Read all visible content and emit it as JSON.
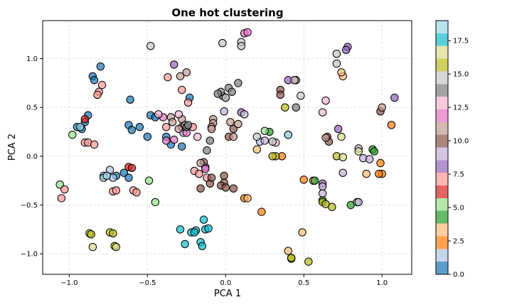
{
  "chart_data": {
    "type": "scatter",
    "title": "One hot clustering",
    "xlabel": "PCA 1",
    "ylabel": "PCA 2",
    "xlim": [
      -1.17,
      1.19
    ],
    "ylim": [
      -1.21,
      1.39
    ],
    "xticks": [
      -1.0,
      -0.5,
      0.0,
      0.5,
      1.0
    ],
    "xtick_labels": [
      "−1.0",
      "−0.5",
      "0.0",
      "0.5",
      "1.0"
    ],
    "yticks": [
      -1.0,
      -0.5,
      0.0,
      0.5,
      1.0
    ],
    "ytick_labels": [
      "−1.0",
      "−0.5",
      "0.0",
      "0.5",
      "1.0"
    ],
    "grid": true,
    "colormap": "tab20",
    "colorbar": {
      "range": [
        0,
        19
      ],
      "ticks": [
        0,
        2.5,
        5,
        7.5,
        10,
        12.5,
        15,
        17.5
      ],
      "tick_labels": [
        "0.0",
        "2.5",
        "5.0",
        "7.5",
        "10.0",
        "12.5",
        "15.0",
        "17.5"
      ]
    },
    "palette": [
      "#1f77b4",
      "#aec7e8",
      "#ff7f0e",
      "#ffbb78",
      "#2ca02c",
      "#98df8a",
      "#d62728",
      "#ff9896",
      "#9467bd",
      "#c5b0d5",
      "#8c564b",
      "#c49c94",
      "#e377c2",
      "#f7b6d2",
      "#7f7f7f",
      "#c7c7c7",
      "#bcbd22",
      "#dbdb8d",
      "#17becf",
      "#9edae5"
    ],
    "points": [
      {
        "x": -0.8,
        "y": 0.92,
        "c": 0
      },
      {
        "x": -0.85,
        "y": 0.82,
        "c": 0
      },
      {
        "x": -0.84,
        "y": 0.78,
        "c": 0
      },
      {
        "x": -0.9,
        "y": 0.35,
        "c": 0
      },
      {
        "x": -0.95,
        "y": 0.3,
        "c": 0
      },
      {
        "x": -0.92,
        "y": 0.28,
        "c": 0
      },
      {
        "x": -0.88,
        "y": 0.42,
        "c": 0
      },
      {
        "x": -0.62,
        "y": 0.32,
        "c": 0
      },
      {
        "x": -0.6,
        "y": 0.27,
        "c": 0
      },
      {
        "x": -0.5,
        "y": 0.2,
        "c": 0
      },
      {
        "x": -0.48,
        "y": 0.42,
        "c": 0
      },
      {
        "x": -0.45,
        "y": 0.4,
        "c": 0
      },
      {
        "x": -0.38,
        "y": 0.2,
        "c": 0
      },
      {
        "x": -0.35,
        "y": 0.12,
        "c": 0
      },
      {
        "x": -0.28,
        "y": 0.1,
        "c": 0
      },
      {
        "x": -0.23,
        "y": 0.6,
        "c": 0
      },
      {
        "x": -0.7,
        "y": -0.2,
        "c": 0
      },
      {
        "x": -0.65,
        "y": -0.17,
        "c": 0
      },
      {
        "x": -0.62,
        "y": -0.22,
        "c": 0
      },
      {
        "x": -0.61,
        "y": 0.58,
        "c": 0
      },
      {
        "x": -0.55,
        "y": 0.3,
        "c": 0
      },
      {
        "x": -0.74,
        "y": -0.14,
        "c": 1
      },
      {
        "x": -0.78,
        "y": -0.2,
        "c": 1
      },
      {
        "x": -0.72,
        "y": -0.22,
        "c": 1
      },
      {
        "x": 0.4,
        "y": 0.22,
        "c": 1
      },
      {
        "x": 0.22,
        "y": 0.15,
        "c": 1
      },
      {
        "x": 1.06,
        "y": 0.32,
        "c": 2
      },
      {
        "x": 0.99,
        "y": -0.07,
        "c": 2
      },
      {
        "x": 1.0,
        "y": -0.18,
        "c": 2
      },
      {
        "x": 0.23,
        "y": -0.57,
        "c": 2
      },
      {
        "x": 0.5,
        "y": -0.24,
        "c": 2
      },
      {
        "x": 0.36,
        "y": 0.0,
        "c": 2
      },
      {
        "x": 0.12,
        "y": -0.43,
        "c": 2
      },
      {
        "x": 0.98,
        "y": -0.18,
        "c": 2
      },
      {
        "x": 0.75,
        "y": 0.82,
        "c": 3
      },
      {
        "x": 0.74,
        "y": 0.86,
        "c": 3
      },
      {
        "x": 0.2,
        "y": 0.07,
        "c": 3
      },
      {
        "x": 0.9,
        "y": -0.18,
        "c": 3
      },
      {
        "x": 0.49,
        "y": -0.78,
        "c": 3
      },
      {
        "x": 0.4,
        "y": -0.97,
        "c": 3
      },
      {
        "x": 0.14,
        "y": -0.43,
        "c": 3
      },
      {
        "x": 0.56,
        "y": -0.25,
        "c": 3
      },
      {
        "x": 0.28,
        "y": 0.25,
        "c": 4
      },
      {
        "x": 0.57,
        "y": -0.25,
        "c": 4
      },
      {
        "x": 0.94,
        "y": 0.07,
        "c": 4
      },
      {
        "x": 0.95,
        "y": 0.05,
        "c": 4
      },
      {
        "x": 0.8,
        "y": -0.5,
        "c": 4
      },
      {
        "x": 0.62,
        "y": -0.45,
        "c": 4
      },
      {
        "x": -1.06,
        "y": -0.29,
        "c": 5
      },
      {
        "x": -0.98,
        "y": 0.22,
        "c": 5
      },
      {
        "x": -0.49,
        "y": -0.25,
        "c": 5
      },
      {
        "x": -0.45,
        "y": -0.47,
        "c": 5
      },
      {
        "x": 0.84,
        "y": -0.47,
        "c": 5
      },
      {
        "x": 0.25,
        "y": 0.26,
        "c": 5
      },
      {
        "x": -0.62,
        "y": -0.11,
        "c": 6
      },
      {
        "x": -0.6,
        "y": -0.12,
        "c": 6
      },
      {
        "x": -0.9,
        "y": 0.38,
        "c": 6
      },
      {
        "x": -0.9,
        "y": 0.14,
        "c": 7
      },
      {
        "x": -0.88,
        "y": 0.14,
        "c": 7
      },
      {
        "x": -1.03,
        "y": -0.34,
        "c": 7
      },
      {
        "x": -1.05,
        "y": -0.43,
        "c": 7
      },
      {
        "x": -0.72,
        "y": -0.36,
        "c": 7
      },
      {
        "x": -0.7,
        "y": -0.35,
        "c": 7
      },
      {
        "x": -0.59,
        "y": -0.35,
        "c": 7
      },
      {
        "x": -0.57,
        "y": -0.37,
        "c": 7
      },
      {
        "x": -0.84,
        "y": 0.12,
        "c": 7
      },
      {
        "x": -0.79,
        "y": 0.73,
        "c": 7
      },
      {
        "x": -0.81,
        "y": 0.66,
        "c": 7
      },
      {
        "x": -0.82,
        "y": 0.63,
        "c": 7
      },
      {
        "x": -0.37,
        "y": 0.81,
        "c": 7
      },
      {
        "x": -0.38,
        "y": 0.3,
        "c": 7
      },
      {
        "x": -0.28,
        "y": 0.68,
        "c": 7
      },
      {
        "x": -0.2,
        "y": -0.15,
        "c": 7
      },
      {
        "x": -0.17,
        "y": -0.18,
        "c": 7
      },
      {
        "x": -0.12,
        "y": -0.22,
        "c": 7
      },
      {
        "x": -0.21,
        "y": 0.3,
        "c": 7
      },
      {
        "x": -0.24,
        "y": 0.55,
        "c": 7
      },
      {
        "x": 0.78,
        "y": 1.12,
        "c": 8
      },
      {
        "x": 0.77,
        "y": 1.09,
        "c": 8
      },
      {
        "x": 0.1,
        "y": 0.45,
        "c": 8
      },
      {
        "x": 0.62,
        "y": -0.28,
        "c": 8
      },
      {
        "x": 0.72,
        "y": 0.28,
        "c": 8
      },
      {
        "x": 1.08,
        "y": 0.6,
        "c": 8
      },
      {
        "x": 0.4,
        "y": 0.78,
        "c": 8
      },
      {
        "x": -0.33,
        "y": 0.94,
        "c": 8
      },
      {
        "x": -0.13,
        "y": -0.11,
        "c": 8
      },
      {
        "x": 0.85,
        "y": 0.08,
        "c": 9
      },
      {
        "x": 0.88,
        "y": -0.02,
        "c": 9
      },
      {
        "x": 0.92,
        "y": -0.03,
        "c": 9
      },
      {
        "x": 0.75,
        "y": -0.17,
        "c": 9
      },
      {
        "x": 0.62,
        "y": -0.31,
        "c": 9
      },
      {
        "x": 0.85,
        "y": -0.47,
        "c": 9
      },
      {
        "x": 0.62,
        "y": -0.38,
        "c": 9
      },
      {
        "x": 0.25,
        "y": 0.16,
        "c": 9
      },
      {
        "x": -0.01,
        "y": 0.46,
        "c": 9
      },
      {
        "x": -0.27,
        "y": 0.24,
        "c": 9
      },
      {
        "x": 0.02,
        "y": 0.2,
        "c": 10
      },
      {
        "x": -0.01,
        "y": -0.27,
        "c": 10
      },
      {
        "x": -0.03,
        "y": -0.3,
        "c": 10
      },
      {
        "x": -0.1,
        "y": -0.28,
        "c": 10
      },
      {
        "x": 0.05,
        "y": -0.33,
        "c": 10
      },
      {
        "x": -0.09,
        "y": -0.22,
        "c": 10
      },
      {
        "x": -0.01,
        "y": -0.2,
        "c": 10
      },
      {
        "x": 0.0,
        "y": -0.32,
        "c": 10
      },
      {
        "x": -0.28,
        "y": 0.3,
        "c": 10
      },
      {
        "x": 0.35,
        "y": 0.68,
        "c": 10
      },
      {
        "x": 0.35,
        "y": 0.63,
        "c": 10
      },
      {
        "x": 0.65,
        "y": 0.2,
        "c": 10
      },
      {
        "x": 0.66,
        "y": 0.15,
        "c": 10
      },
      {
        "x": 0.99,
        "y": 0.46,
        "c": 10
      },
      {
        "x": -0.16,
        "y": -0.33,
        "c": 10
      },
      {
        "x": 0.05,
        "y": 0.28,
        "c": 10
      },
      {
        "x": -0.14,
        "y": -0.06,
        "c": 10
      },
      {
        "x": -0.08,
        "y": 0.38,
        "c": 11
      },
      {
        "x": -0.08,
        "y": 0.34,
        "c": 11
      },
      {
        "x": -0.09,
        "y": 0.3,
        "c": 11
      },
      {
        "x": -0.09,
        "y": 0.28,
        "c": 11
      },
      {
        "x": -0.35,
        "y": 0.4,
        "c": 11
      },
      {
        "x": -0.34,
        "y": 0.35,
        "c": 11
      },
      {
        "x": -0.28,
        "y": 0.38,
        "c": 11
      },
      {
        "x": -0.26,
        "y": 0.32,
        "c": 11
      },
      {
        "x": -0.3,
        "y": 0.28,
        "c": 11
      },
      {
        "x": -0.25,
        "y": 0.86,
        "c": 11
      },
      {
        "x": -0.29,
        "y": 0.82,
        "c": 11
      },
      {
        "x": -0.16,
        "y": -0.07,
        "c": 11
      },
      {
        "x": 0.08,
        "y": 0.33,
        "c": 11
      },
      {
        "x": 0.03,
        "y": 0.35,
        "c": 11
      },
      {
        "x": 0.05,
        "y": 0.2,
        "c": 11
      },
      {
        "x": 0.64,
        "y": 0.19,
        "c": 11
      },
      {
        "x": 1.0,
        "y": 0.5,
        "c": 11
      },
      {
        "x": 0.12,
        "y": 1.26,
        "c": 12
      },
      {
        "x": 0.14,
        "y": 1.27,
        "c": 12
      },
      {
        "x": -0.25,
        "y": 0.24,
        "c": 12
      },
      {
        "x": -0.4,
        "y": 0.4,
        "c": 12
      },
      {
        "x": -0.38,
        "y": 0.16,
        "c": 12
      },
      {
        "x": -0.33,
        "y": 0.17,
        "c": 12
      },
      {
        "x": -0.13,
        "y": -0.13,
        "c": 12
      },
      {
        "x": 0.62,
        "y": 0.45,
        "c": 13
      },
      {
        "x": 0.64,
        "y": 0.57,
        "c": 13
      },
      {
        "x": -0.3,
        "y": 0.43,
        "c": 13
      },
      {
        "x": 0.32,
        "y": 0.14,
        "c": 13
      },
      {
        "x": -0.43,
        "y": 0.43,
        "c": 13
      },
      {
        "x": -0.18,
        "y": 0.2,
        "c": 13
      },
      {
        "x": 0.02,
        "y": 0.7,
        "c": 14
      },
      {
        "x": 0.04,
        "y": 0.66,
        "c": 14
      },
      {
        "x": 0.0,
        "y": 0.6,
        "c": 14
      },
      {
        "x": -0.02,
        "y": 0.62,
        "c": 14
      },
      {
        "x": -0.03,
        "y": 0.66,
        "c": 14
      },
      {
        "x": -0.05,
        "y": 0.64,
        "c": 14
      },
      {
        "x": 0.45,
        "y": 0.78,
        "c": 14
      },
      {
        "x": 0.45,
        "y": 0.5,
        "c": 14
      },
      {
        "x": -0.25,
        "y": 0.3,
        "c": 14
      },
      {
        "x": -0.24,
        "y": 0.32,
        "c": 14
      },
      {
        "x": -0.12,
        "y": 0.06,
        "c": 14
      },
      {
        "x": 0.08,
        "y": 0.75,
        "c": 14
      },
      {
        "x": -0.1,
        "y": 0.16,
        "c": 14
      },
      {
        "x": 0.1,
        "y": 1.17,
        "c": 15
      },
      {
        "x": 0.1,
        "y": 1.13,
        "c": 15
      },
      {
        "x": -0.02,
        "y": 1.16,
        "c": 15
      },
      {
        "x": -0.48,
        "y": 1.13,
        "c": 15
      },
      {
        "x": 0.71,
        "y": 1.05,
        "c": 15
      },
      {
        "x": 0.71,
        "y": 0.95,
        "c": 15
      },
      {
        "x": 0.48,
        "y": 0.62,
        "c": 15
      },
      {
        "x": 0.44,
        "y": 0.78,
        "c": 15
      },
      {
        "x": 0.12,
        "y": 0.43,
        "c": 15
      },
      {
        "x": 0.2,
        "y": 0.2,
        "c": 15
      },
      {
        "x": 0.3,
        "y": 0.15,
        "c": 15
      },
      {
        "x": 0.0,
        "y": 0.6,
        "c": 15
      },
      {
        "x": 0.38,
        "y": 0.5,
        "c": 16
      },
      {
        "x": 0.32,
        "y": 0.0,
        "c": 16
      },
      {
        "x": 0.3,
        "y": 0.0,
        "c": 16
      },
      {
        "x": 0.71,
        "y": 0.0,
        "c": 16
      },
      {
        "x": 0.62,
        "y": -0.47,
        "c": 16
      },
      {
        "x": 0.64,
        "y": -0.49,
        "c": 16
      },
      {
        "x": 0.68,
        "y": -0.52,
        "c": 16
      },
      {
        "x": 0.42,
        "y": -1.05,
        "c": 16
      },
      {
        "x": 0.53,
        "y": -1.08,
        "c": 16
      },
      {
        "x": 0.42,
        "y": -1.04,
        "c": 16
      },
      {
        "x": -0.87,
        "y": -0.79,
        "c": 16
      },
      {
        "x": -0.74,
        "y": -0.78,
        "c": 16
      },
      {
        "x": -0.71,
        "y": -0.92,
        "c": 16
      },
      {
        "x": -0.86,
        "y": -0.8,
        "c": 16
      },
      {
        "x": -0.72,
        "y": -0.79,
        "c": 16
      },
      {
        "x": 0.75,
        "y": -0.01,
        "c": 17
      },
      {
        "x": 0.74,
        "y": 0.2,
        "c": 17
      },
      {
        "x": -0.85,
        "y": -0.93,
        "c": 17
      },
      {
        "x": -0.7,
        "y": -0.93,
        "c": 17
      },
      {
        "x": 0.85,
        "y": 0.05,
        "c": 17
      },
      {
        "x": -0.29,
        "y": -0.75,
        "c": 18
      },
      {
        "x": -0.22,
        "y": -0.78,
        "c": 18
      },
      {
        "x": -0.19,
        "y": -0.76,
        "c": 18
      },
      {
        "x": -0.13,
        "y": -0.75,
        "c": 18
      },
      {
        "x": -0.11,
        "y": -0.74,
        "c": 18
      },
      {
        "x": -0.14,
        "y": -0.65,
        "c": 18
      },
      {
        "x": -0.16,
        "y": -0.88,
        "c": 18
      },
      {
        "x": -0.15,
        "y": -0.92,
        "c": 18
      },
      {
        "x": -0.26,
        "y": -0.9,
        "c": 18
      },
      {
        "x": -0.2,
        "y": -0.78,
        "c": 18
      },
      {
        "x": -0.78,
        "y": -0.22,
        "c": 19
      },
      {
        "x": -0.76,
        "y": -0.2,
        "c": 19
      },
      {
        "x": 0.4,
        "y": 0.22,
        "c": 19
      },
      {
        "x": -0.93,
        "y": 0.3,
        "c": 19
      }
    ]
  }
}
